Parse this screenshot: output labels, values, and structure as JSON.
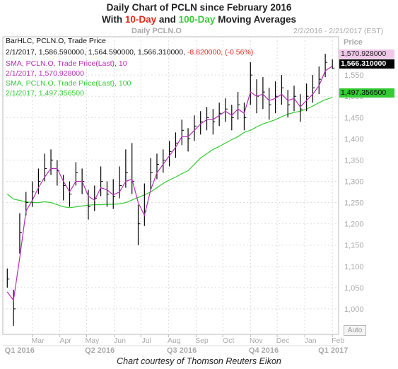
{
  "title": {
    "line1": "Daily Chart of PCLN since February 2016",
    "line2_prefix": "With ",
    "line2_sma10": "10-Day",
    "line2_and": " and ",
    "line2_sma100": "100-Day",
    "line2_suffix": " Moving Averages"
  },
  "header": {
    "symbol_label": "Daily PCLN.O",
    "date_range": "2/2/2016 - 2/21/2017 (EST)"
  },
  "legend": {
    "bar_label": "BarHLC, PCLN.O, Trade Price",
    "bar_values": "2/1/2017, 1,586.590000, 1,564.590000, 1,566.310000,",
    "bar_change": "-8.820000, (-0.56%)",
    "sma10_label": "SMA, PCLN.O, Trade Price(Last), 10",
    "sma10_value": "2/1/2017, 1,570.928000",
    "sma100_label": "SMA, PCLN.O, Trade Price(Last), 100",
    "sma100_value": "2/1/2017, 1,497.356500"
  },
  "price_tags": {
    "sma10": "1,570.928000",
    "last": "1,566.310000",
    "sma100": "1,497.356500"
  },
  "axis": {
    "price_title": "Price",
    "auto_button": "Auto"
  },
  "caption": "Chart courtesy of Thomson Reuters Eikon",
  "colors": {
    "sma10": "#b22fb2",
    "sma100": "#33cc33",
    "bars": "#000000",
    "title_red": "#e8261d",
    "title_green": "#3cc83c",
    "sma10_tag_bg": "#f0c8e8",
    "sma100_tag_bg": "#33cc33"
  },
  "chart_data": {
    "type": "line",
    "title": "Daily Chart of PCLN since February 2016",
    "xlabel": "",
    "ylabel": "Price",
    "ylim": [
      940,
      1640
    ],
    "yticks": [
      1000,
      1050,
      1100,
      1150,
      1200,
      1250,
      1300,
      1350,
      1400,
      1450,
      1500,
      1550
    ],
    "ytick_labels": [
      "1,000",
      "1,050",
      "1,100",
      "1,150",
      "1,200",
      "1,250",
      "1,300",
      "1,350",
      "1,400",
      "1,450",
      "1,500",
      "1,550"
    ],
    "x_month_labels": [
      "Mar",
      "Apr",
      "May",
      "Jun",
      "Jul",
      "Aug",
      "Sep",
      "Oct",
      "Nov",
      "Dec",
      "Jan",
      "Feb"
    ],
    "x_quarter_labels": [
      "Q1 2016",
      "Q2 2016",
      "Q3 2016",
      "Q4 2016",
      "Q1 2017"
    ],
    "x": [
      "2016-02-02",
      "2016-02-09",
      "2016-02-16",
      "2016-02-23",
      "2016-03-01",
      "2016-03-08",
      "2016-03-15",
      "2016-03-22",
      "2016-03-29",
      "2016-04-05",
      "2016-04-12",
      "2016-04-19",
      "2016-04-26",
      "2016-05-03",
      "2016-05-10",
      "2016-05-17",
      "2016-05-24",
      "2016-05-31",
      "2016-06-07",
      "2016-06-14",
      "2016-06-21",
      "2016-06-28",
      "2016-07-05",
      "2016-07-12",
      "2016-07-19",
      "2016-07-26",
      "2016-08-02",
      "2016-08-09",
      "2016-08-16",
      "2016-08-23",
      "2016-08-30",
      "2016-09-06",
      "2016-09-13",
      "2016-09-20",
      "2016-09-27",
      "2016-10-04",
      "2016-10-11",
      "2016-10-18",
      "2016-10-25",
      "2016-11-01",
      "2016-11-08",
      "2016-11-15",
      "2016-11-22",
      "2016-11-29",
      "2016-12-06",
      "2016-12-13",
      "2016-12-20",
      "2016-12-27",
      "2017-01-03",
      "2017-01-10",
      "2017-01-17",
      "2017-01-24",
      "2017-02-01"
    ],
    "series": [
      {
        "name": "BarHLC, PCLN.O, Trade Price",
        "style": "ohlc-bars",
        "close": [
          1070,
          1000,
          1180,
          1250,
          1275,
          1300,
          1330,
          1350,
          1325,
          1290,
          1270,
          1320,
          1300,
          1240,
          1260,
          1300,
          1270,
          1265,
          1290,
          1320,
          1300,
          1200,
          1230,
          1320,
          1340,
          1350,
          1370,
          1390,
          1420,
          1400,
          1430,
          1440,
          1450,
          1440,
          1460,
          1470,
          1450,
          1480,
          1450,
          1550,
          1500,
          1510,
          1480,
          1500,
          1520,
          1480,
          1500,
          1470,
          1500,
          1520,
          1540,
          1580,
          1566.31
        ],
        "high": [
          1095,
          1045,
          1225,
          1275,
          1300,
          1330,
          1365,
          1375,
          1350,
          1315,
          1300,
          1345,
          1330,
          1280,
          1290,
          1335,
          1300,
          1305,
          1335,
          1375,
          1390,
          1245,
          1295,
          1355,
          1365,
          1375,
          1395,
          1415,
          1445,
          1425,
          1455,
          1465,
          1475,
          1470,
          1485,
          1495,
          1480,
          1510,
          1485,
          1580,
          1540,
          1545,
          1520,
          1535,
          1550,
          1515,
          1525,
          1505,
          1530,
          1550,
          1570,
          1600,
          1586.59
        ],
        "low": [
          1050,
          960,
          1130,
          1220,
          1240,
          1270,
          1300,
          1315,
          1290,
          1255,
          1240,
          1290,
          1270,
          1210,
          1230,
          1265,
          1240,
          1235,
          1260,
          1285,
          1270,
          1150,
          1195,
          1280,
          1305,
          1320,
          1335,
          1355,
          1385,
          1370,
          1395,
          1410,
          1420,
          1410,
          1430,
          1440,
          1420,
          1445,
          1420,
          1480,
          1460,
          1470,
          1445,
          1460,
          1480,
          1450,
          1465,
          1440,
          1465,
          1485,
          1505,
          1545,
          1564.59
        ]
      },
      {
        "name": "SMA, PCLN.O, Trade Price(Last), 10",
        "values": [
          1040,
          1020,
          1120,
          1230,
          1255,
          1285,
          1310,
          1330,
          1330,
          1300,
          1275,
          1300,
          1300,
          1265,
          1255,
          1285,
          1280,
          1268,
          1275,
          1300,
          1305,
          1250,
          1220,
          1280,
          1320,
          1340,
          1360,
          1380,
          1405,
          1405,
          1420,
          1435,
          1445,
          1445,
          1455,
          1465,
          1455,
          1470,
          1460,
          1510,
          1500,
          1505,
          1490,
          1495,
          1505,
          1490,
          1495,
          1475,
          1490,
          1505,
          1525,
          1560,
          1570.93
        ]
      },
      {
        "name": "SMA, PCLN.O, Trade Price(Last), 100",
        "values": [
          1270,
          1258,
          1255,
          1252,
          1250,
          1250,
          1252,
          1250,
          1245,
          1240,
          1238,
          1240,
          1242,
          1244,
          1245,
          1245,
          1246,
          1246,
          1247,
          1250,
          1256,
          1262,
          1268,
          1275,
          1285,
          1295,
          1303,
          1310,
          1318,
          1325,
          1340,
          1355,
          1365,
          1375,
          1382,
          1390,
          1398,
          1405,
          1415,
          1420,
          1428,
          1435,
          1440,
          1445,
          1452,
          1458,
          1462,
          1465,
          1470,
          1477,
          1485,
          1492,
          1497.36
        ]
      }
    ],
    "grid": true,
    "legend_position": "top-left"
  }
}
